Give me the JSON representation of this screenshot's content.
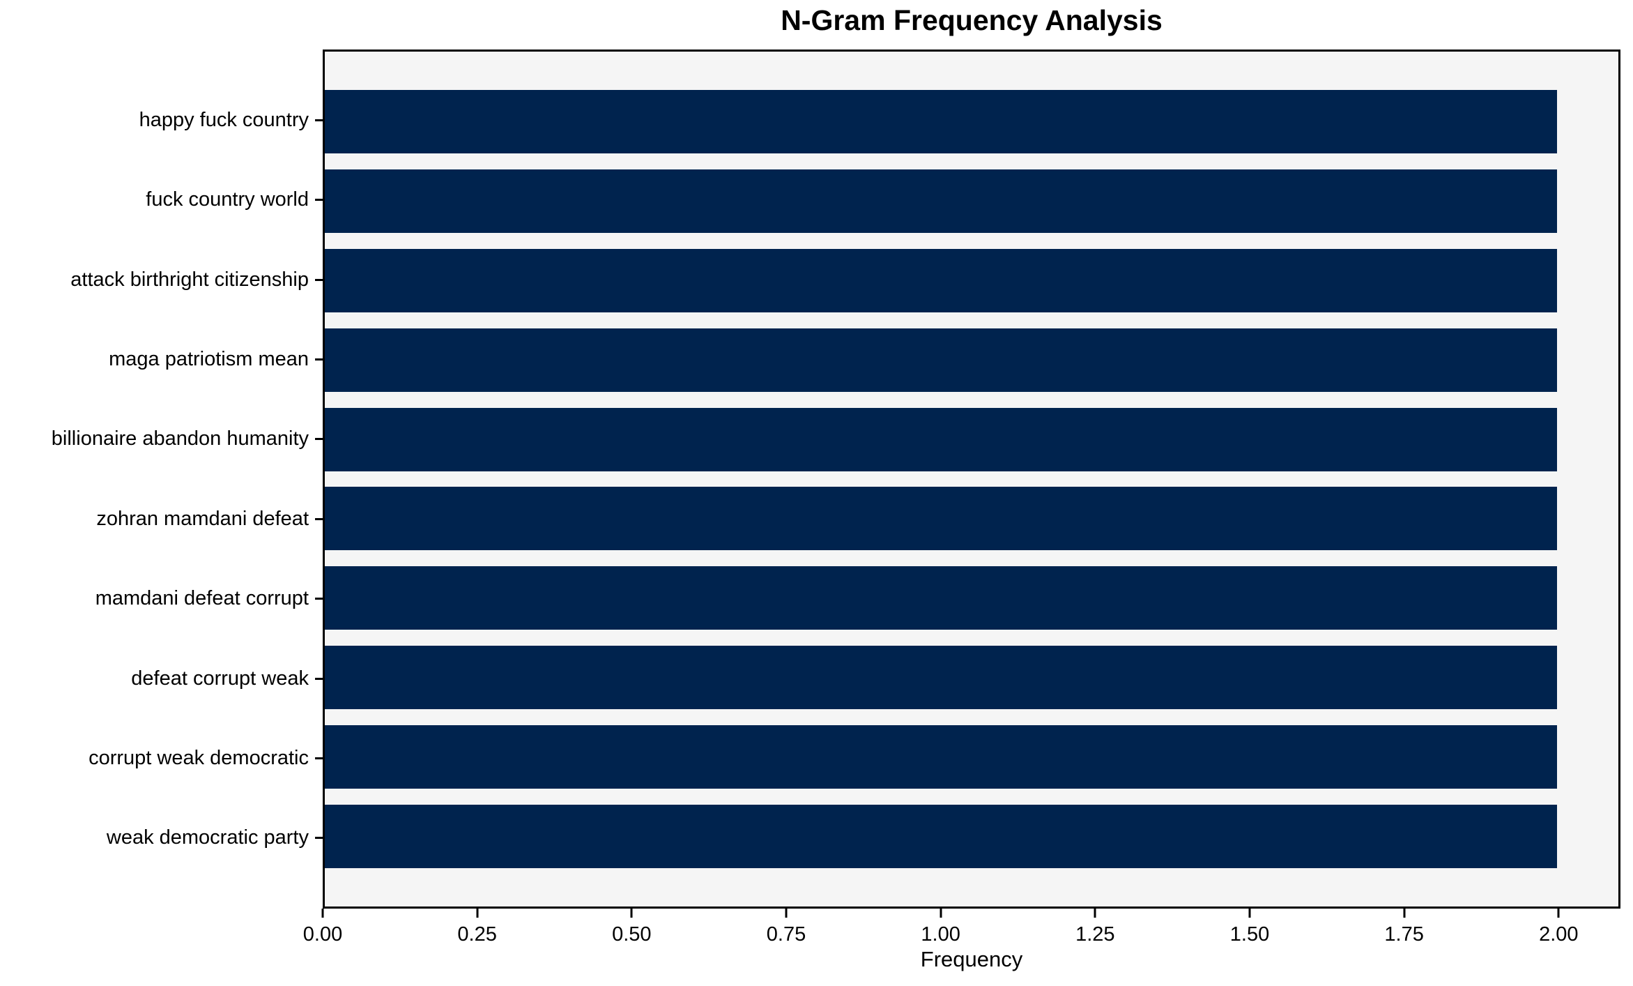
{
  "chart_data": {
    "type": "bar",
    "orientation": "horizontal",
    "title": "N-Gram Frequency Analysis",
    "xlabel": "Frequency",
    "ylabel": "",
    "categories": [
      "happy fuck country",
      "fuck country world",
      "attack birthright citizenship",
      "maga patriotism mean",
      "billionaire abandon humanity",
      "zohran mamdani defeat",
      "mamdani defeat corrupt",
      "defeat corrupt weak",
      "corrupt weak democratic",
      "weak democratic party"
    ],
    "values": [
      2,
      2,
      2,
      2,
      2,
      2,
      2,
      2,
      2,
      2
    ],
    "xlim": [
      0,
      2.1
    ],
    "xticks": [
      0.0,
      0.25,
      0.5,
      0.75,
      1.0,
      1.25,
      1.5,
      1.75,
      2.0
    ],
    "xtick_labels": [
      "0.00",
      "0.25",
      "0.50",
      "0.75",
      "1.00",
      "1.25",
      "1.50",
      "1.75",
      "2.00"
    ],
    "grid": false,
    "legend": false,
    "bar_color": "#00234e",
    "plot_background": "#f5f5f5",
    "figure_background": "#ffffff",
    "spine_color": "#000000",
    "text_color": "#000000"
  }
}
